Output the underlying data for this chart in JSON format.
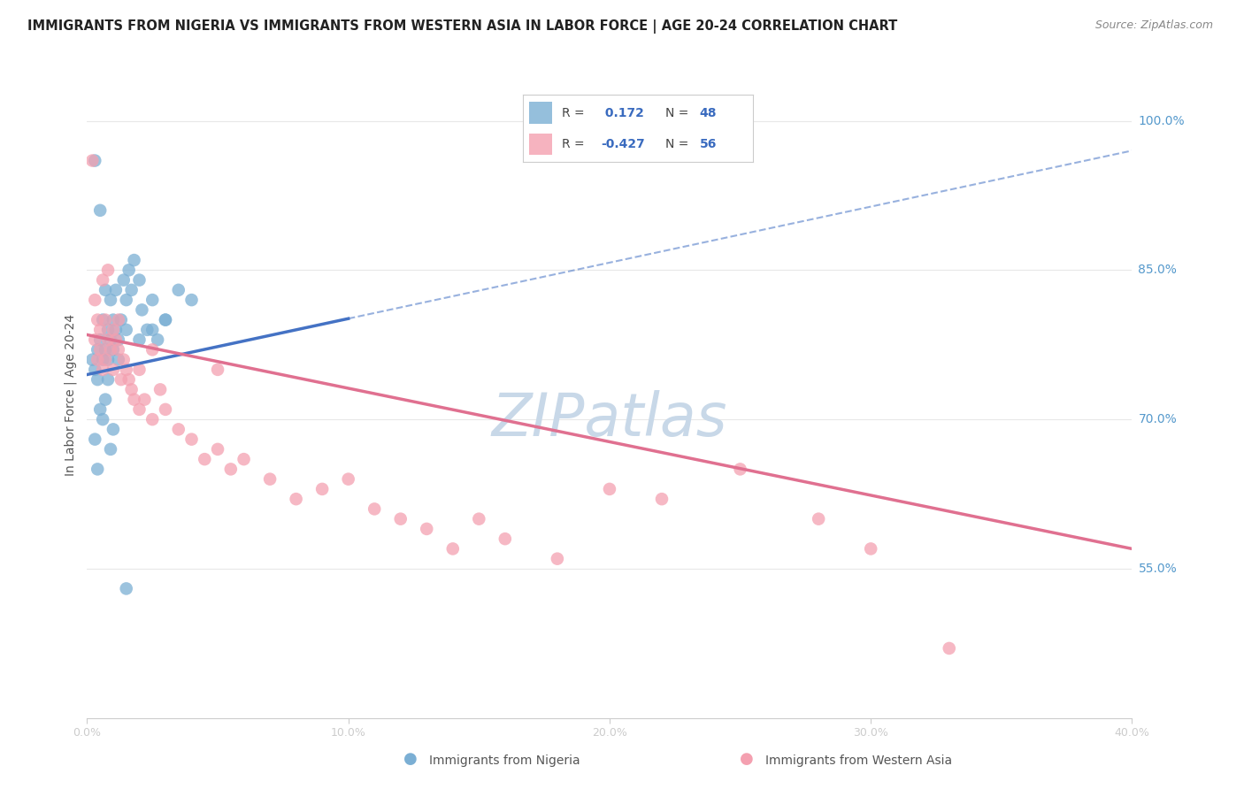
{
  "title": "IMMIGRANTS FROM NIGERIA VS IMMIGRANTS FROM WESTERN ASIA IN LABOR FORCE | AGE 20-24 CORRELATION CHART",
  "source": "Source: ZipAtlas.com",
  "ylabel": "In Labor Force | Age 20-24",
  "right_yticks": [
    100.0,
    85.0,
    70.0,
    55.0
  ],
  "xmin": 0.0,
  "xmax": 40.0,
  "ymin": 40.0,
  "ymax": 105.0,
  "nigeria_color": "#7bafd4",
  "western_asia_color": "#f4a0b0",
  "nigeria_R": 0.172,
  "nigeria_N": 48,
  "western_asia_R": -0.427,
  "western_asia_N": 56,
  "nigeria_scatter_x": [
    0.2,
    0.3,
    0.3,
    0.4,
    0.4,
    0.5,
    0.5,
    0.6,
    0.6,
    0.7,
    0.7,
    0.8,
    0.8,
    0.9,
    0.9,
    1.0,
    1.0,
    1.1,
    1.1,
    1.2,
    1.2,
    1.3,
    1.4,
    1.5,
    1.5,
    1.6,
    1.7,
    1.8,
    2.0,
    2.1,
    2.3,
    2.5,
    2.7,
    3.0,
    3.5,
    4.0,
    0.3,
    0.4,
    0.5,
    0.6,
    0.7,
    0.8,
    0.9,
    1.0,
    1.5,
    2.0,
    2.5,
    3.0
  ],
  "nigeria_scatter_y": [
    76.0,
    75.0,
    96.0,
    77.0,
    74.0,
    78.0,
    91.0,
    76.0,
    80.0,
    77.0,
    83.0,
    79.0,
    76.0,
    78.0,
    82.0,
    80.0,
    77.0,
    79.0,
    83.0,
    78.0,
    76.0,
    80.0,
    84.0,
    82.0,
    79.0,
    85.0,
    83.0,
    86.0,
    84.0,
    81.0,
    79.0,
    82.0,
    78.0,
    80.0,
    83.0,
    82.0,
    68.0,
    65.0,
    71.0,
    70.0,
    72.0,
    74.0,
    67.0,
    69.0,
    53.0,
    78.0,
    79.0,
    80.0
  ],
  "western_asia_scatter_x": [
    0.2,
    0.3,
    0.3,
    0.4,
    0.4,
    0.5,
    0.5,
    0.6,
    0.7,
    0.7,
    0.8,
    0.9,
    1.0,
    1.0,
    1.1,
    1.2,
    1.3,
    1.4,
    1.5,
    1.6,
    1.7,
    1.8,
    2.0,
    2.0,
    2.2,
    2.5,
    2.8,
    3.0,
    3.5,
    4.0,
    4.5,
    5.0,
    5.5,
    6.0,
    7.0,
    8.0,
    9.0,
    10.0,
    11.0,
    12.0,
    13.0,
    14.0,
    15.0,
    16.0,
    18.0,
    20.0,
    22.0,
    25.0,
    28.0,
    30.0,
    0.6,
    0.8,
    1.2,
    2.5,
    5.0,
    33.0
  ],
  "western_asia_scatter_y": [
    96.0,
    82.0,
    78.0,
    80.0,
    76.0,
    79.0,
    77.0,
    75.0,
    80.0,
    76.0,
    78.0,
    77.0,
    79.0,
    75.0,
    78.0,
    77.0,
    74.0,
    76.0,
    75.0,
    74.0,
    73.0,
    72.0,
    75.0,
    71.0,
    72.0,
    70.0,
    73.0,
    71.0,
    69.0,
    68.0,
    66.0,
    67.0,
    65.0,
    66.0,
    64.0,
    62.0,
    63.0,
    64.0,
    61.0,
    60.0,
    59.0,
    57.0,
    60.0,
    58.0,
    56.0,
    63.0,
    62.0,
    65.0,
    60.0,
    57.0,
    84.0,
    85.0,
    80.0,
    77.0,
    75.0,
    47.0
  ],
  "watermark": "ZIPatlas",
  "watermark_color": "#c8d8e8",
  "legend_R_color": "#3a6bbf",
  "legend_N_color": "#3a6bbf",
  "trend_blue_color": "#4472c4",
  "trend_pink_color": "#e07090",
  "background_color": "#ffffff",
  "grid_color": "#e8e8e8",
  "nigeria_trend_x0": 0.0,
  "nigeria_trend_y0": 74.5,
  "nigeria_trend_x1": 40.0,
  "nigeria_trend_y1": 97.0,
  "western_asia_trend_x0": 0.0,
  "western_asia_trend_y0": 78.5,
  "western_asia_trend_x1": 40.0,
  "western_asia_trend_y1": 57.0
}
